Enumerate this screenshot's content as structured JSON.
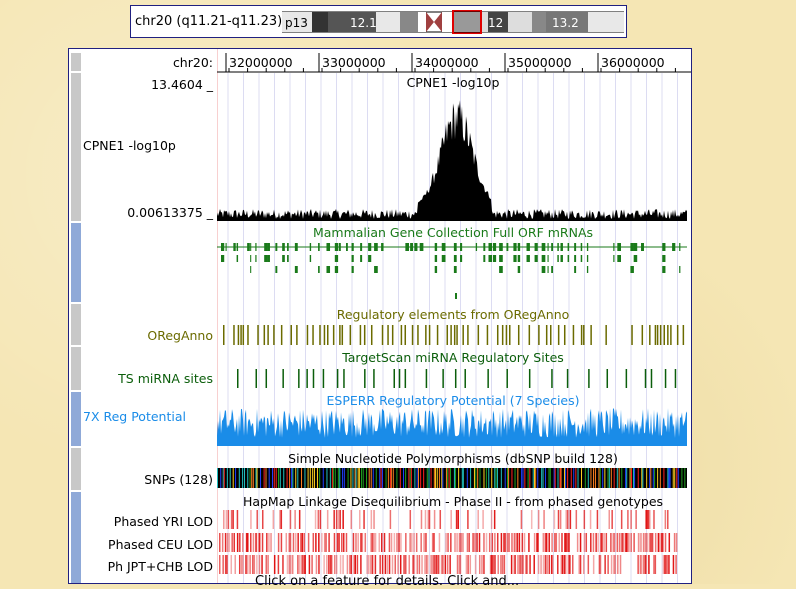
{
  "ideogram": {
    "label": "chr20 (q11.21-q11.23)",
    "bands": [
      "p13",
      "12.1",
      "12",
      "13.2"
    ]
  },
  "ruler": {
    "chrom": "chr20:",
    "ticks": [
      "32000000",
      "33000000",
      "34000000",
      "35000000",
      "36000000"
    ]
  },
  "tracks": {
    "cpne1": {
      "title": "CPNE1 -log10p",
      "label": "CPNE1 -log10p",
      "max": "13.4604 _",
      "min": "0.00613375 _"
    },
    "mgc": {
      "title": "Mammalian Gene Collection Full ORF mRNAs"
    },
    "oreg": {
      "title": "Regulatory elements from ORegAnno",
      "label": "ORegAnno"
    },
    "ts": {
      "title": "TargetScan miRNA Regulatory Sites",
      "label": "TS miRNA sites"
    },
    "esperr": {
      "title": "ESPERR Regulatory Potential (7 Species)",
      "label": "7X Reg Potential"
    },
    "snp": {
      "title": "Simple Nucleotide Polymorphisms (dbSNP build 128)",
      "label": "SNPs (128)"
    },
    "hapmap": {
      "title": "HapMap Linkage Disequilibrium - Phase II - from phased genotypes",
      "labels": [
        "Phased YRI LOD",
        "Phased CEU LOD",
        "Ph JPT+CHB LOD"
      ]
    }
  },
  "colors": {
    "mgc": "#1a7a1a",
    "oreg": "#6b6b00",
    "ts": "#0b5e0b",
    "esperr": "#1a8ce8",
    "ld": "#e01010",
    "frame": "#202080"
  },
  "footer": "Click on a feature for details. Click and..."
}
